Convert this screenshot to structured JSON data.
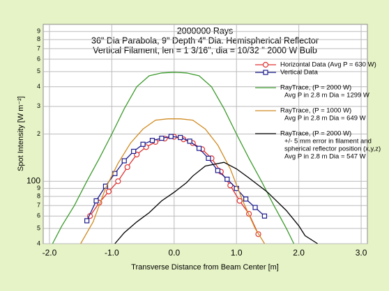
{
  "chart_data": {
    "type": "line",
    "title": [
      "2000000 Rays",
      "36\" Dia Parabola, 9\" Depth     4\" Dia. Hemispherical Reflector",
      "Vertical Filament, len = 1 3/16\", dia = 10/32 \"     2000 W Bulb"
    ],
    "x_label": "Transverse Distance from Beam Center [m]",
    "y_label": "Spot Intensity [W m⁻²]",
    "log_y": true,
    "grid": true,
    "xlim": [
      -2.1,
      3.1
    ],
    "xticks": [
      {
        "value": -2,
        "label": "-2.0"
      },
      {
        "value": -1,
        "label": "-1.0"
      },
      {
        "value": 0,
        "label": "0.0"
      },
      {
        "value": 1,
        "label": "1.0"
      },
      {
        "value": 2,
        "label": "2.0"
      },
      {
        "value": 3,
        "label": "3.0"
      }
    ],
    "ylim": [
      40,
      1000
    ],
    "yticks": [
      {
        "value": 40,
        "label": "4"
      },
      {
        "value": 50,
        "label": "5"
      },
      {
        "value": 60,
        "label": "6"
      },
      {
        "value": 70,
        "label": "7"
      },
      {
        "value": 80,
        "label": "8"
      },
      {
        "value": 90,
        "label": "9"
      },
      100,
      {
        "value": 200,
        "label": "2"
      },
      {
        "value": 300,
        "label": "3"
      },
      {
        "value": 400,
        "label": "4"
      },
      {
        "value": 500,
        "label": "5"
      },
      {
        "value": 600,
        "label": "6"
      },
      {
        "value": 700,
        "label": "7"
      },
      {
        "value": 800,
        "label": "8"
      },
      {
        "value": 900,
        "label": "9"
      }
    ],
    "series": [
      {
        "name": "Horizontal Data  (Avg P = 630 W)",
        "color": "#e03030",
        "marker": "circle",
        "x": [
          -1.35,
          -1.2,
          -1.05,
          -0.9,
          -0.75,
          -0.6,
          -0.45,
          -0.3,
          -0.15,
          0,
          0.15,
          0.3,
          0.45,
          0.6,
          0.75,
          0.9,
          1.05,
          1.2,
          1.35
        ],
        "values": [
          60,
          73,
          86,
          100,
          123,
          148,
          165,
          178,
          187,
          192,
          185,
          175,
          160,
          140,
          115,
          94,
          75,
          62,
          46
        ]
      },
      {
        "name": "Vertical Data",
        "color": "#1a1a8c",
        "marker": "square",
        "x": [
          -1.4,
          -1.25,
          -1.1,
          -0.95,
          -0.8,
          -0.65,
          -0.5,
          -0.35,
          -0.2,
          -0.05,
          0.1,
          0.25,
          0.4,
          0.55,
          0.7,
          0.85,
          1.0,
          1.15,
          1.3,
          1.45
        ],
        "values": [
          56,
          75,
          93,
          112,
          135,
          155,
          172,
          182,
          188,
          193,
          190,
          180,
          162,
          140,
          117,
          103,
          90,
          77,
          68,
          60
        ]
      },
      {
        "name": "RayTrace, (P = 2000 W)",
        "legend_detail": [
          "Avg P in 2.8 m Dia = 1299 W"
        ],
        "color": "#3a9a2a",
        "x": [
          -1.95,
          -1.8,
          -1.6,
          -1.4,
          -1.2,
          -1.0,
          -0.8,
          -0.6,
          -0.4,
          -0.2,
          0,
          0.2,
          0.4,
          0.6,
          0.8,
          1.0,
          1.2,
          1.4,
          1.6,
          1.8,
          1.92
        ],
        "values": [
          40,
          52,
          70,
          100,
          140,
          200,
          290,
          400,
          470,
          490,
          495,
          490,
          470,
          400,
          290,
          200,
          140,
          100,
          70,
          50,
          40
        ]
      },
      {
        "name": "RayTrace, (P = 1000 W)",
        "legend_detail": [
          "Avg P in 2.8 m Dia = 649 W"
        ],
        "color": "#d08a20",
        "x": [
          -1.5,
          -1.3,
          -1.1,
          -0.9,
          -0.7,
          -0.5,
          -0.3,
          -0.1,
          0,
          0.1,
          0.3,
          0.5,
          0.7,
          0.9,
          1.1,
          1.3,
          1.45
        ],
        "values": [
          40,
          55,
          90,
          130,
          175,
          215,
          245,
          250,
          250,
          250,
          245,
          215,
          170,
          120,
          75,
          50,
          40
        ]
      },
      {
        "name": "RayTrace, (P = 2000 W)",
        "legend_detail": [
          "+/- 5 mm error in filament and",
          "spherical reflector position (x,y,z)",
          "Avg P in 2.8 m Dia = 547 W"
        ],
        "color": "#000000",
        "x": [
          -0.95,
          -0.8,
          -0.6,
          -0.4,
          -0.2,
          0,
          0.2,
          0.3,
          0.5,
          0.8,
          1.0,
          1.2,
          1.5,
          1.8,
          2.0,
          2.1,
          2.3
        ],
        "values": [
          40,
          47,
          55,
          63,
          75,
          85,
          98,
          108,
          125,
          132,
          120,
          105,
          85,
          65,
          52,
          45,
          40
        ]
      }
    ]
  }
}
